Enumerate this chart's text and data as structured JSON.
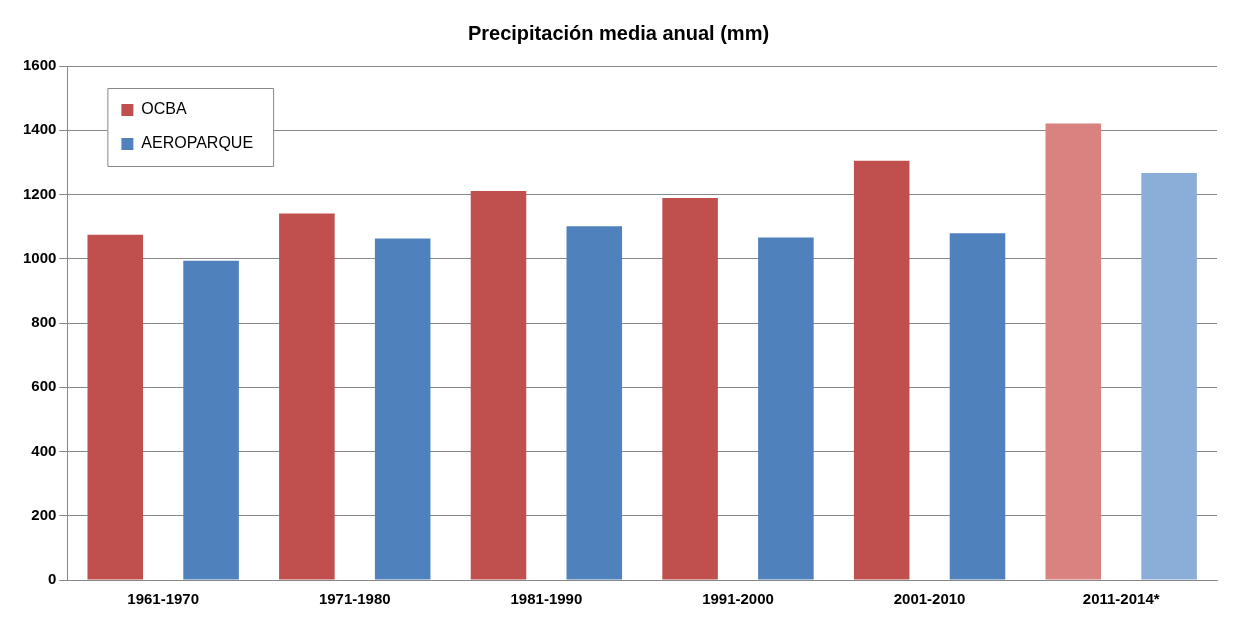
{
  "chart_data": {
    "type": "bar",
    "title": "Precipitación media anual (mm)",
    "categories": [
      "1961-1970",
      "1971-1980",
      "1981-1990",
      "1991-2000",
      "2001-2010",
      "2011-2014*"
    ],
    "series": [
      {
        "name": "OCBA",
        "color": "#c0504d",
        "colors": [
          "#c0504d",
          "#c0504d",
          "#c0504d",
          "#c0504d",
          "#c0504d",
          "#d98280"
        ],
        "values": [
          1075,
          1141,
          1211,
          1189,
          1305,
          1421
        ]
      },
      {
        "name": "AEROPARQUE",
        "color": "#4f81bd",
        "colors": [
          "#4f81bd",
          "#4f81bd",
          "#4f81bd",
          "#4f81bd",
          "#4f81bd",
          "#8aaed8"
        ],
        "values": [
          994,
          1063,
          1101,
          1066,
          1079,
          1267
        ]
      }
    ],
    "ylim": [
      0,
      1600
    ],
    "yticks": [
      0,
      200,
      400,
      600,
      800,
      1000,
      1200,
      1400,
      1600
    ],
    "grid": "y",
    "legend": "top left"
  }
}
